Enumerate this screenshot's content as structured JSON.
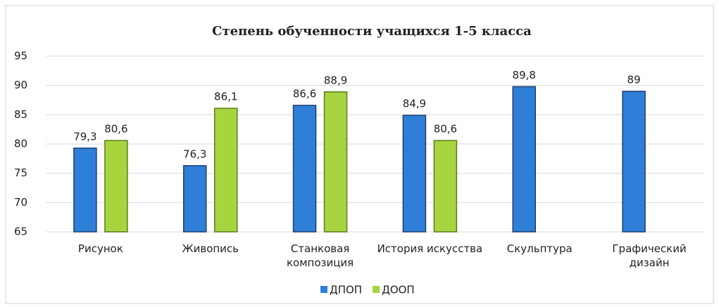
{
  "chart_data": {
    "type": "bar",
    "title": "Степень обученности учащихся 1-5 класса",
    "categories": [
      "Рисунок",
      "Живопись",
      "Станковая композиция",
      "История искусства",
      "Скульптура",
      "Графический дизайн"
    ],
    "series": [
      {
        "name": "ДПОП",
        "color": "#2f7fd8",
        "values": [
          79.3,
          76.3,
          86.6,
          84.9,
          89.8,
          89
        ],
        "value_labels": [
          "79,3",
          "76,3",
          "86,6",
          "84,9",
          "89,8",
          "89"
        ]
      },
      {
        "name": "ДООП",
        "color": "#a8d53f",
        "values": [
          80.6,
          86.1,
          88.9,
          80.6,
          null,
          null
        ],
        "value_labels": [
          "80,6",
          "86,1",
          "88,9",
          "80,6",
          null,
          null
        ]
      }
    ],
    "ylim": [
      65,
      95
    ],
    "yticks": [
      65,
      70,
      75,
      80,
      85,
      90,
      95
    ],
    "grid": true,
    "legend": "bottom"
  }
}
